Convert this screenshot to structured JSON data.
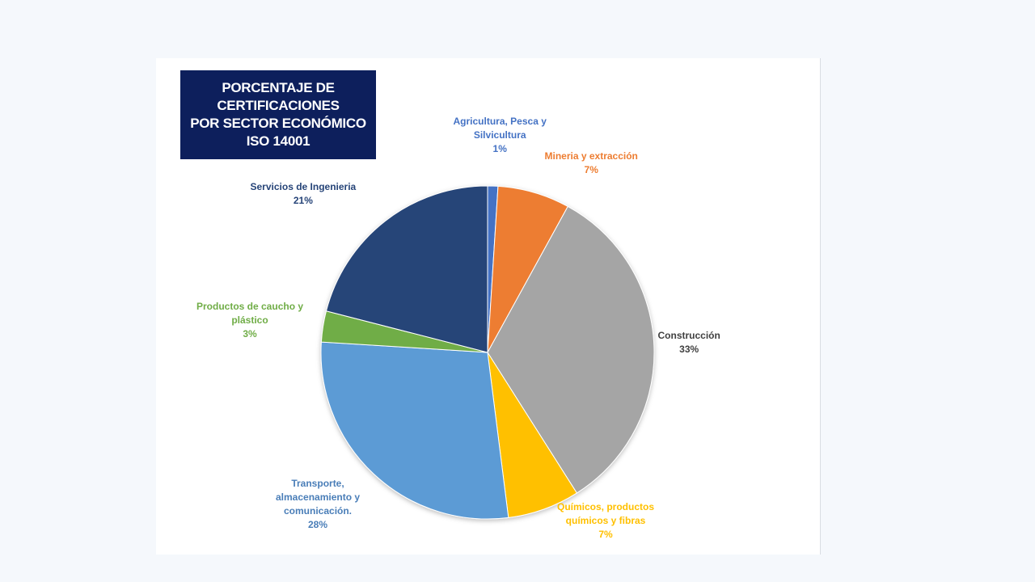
{
  "title_lines": [
    "PORCENTAJE DE",
    "CERTIFICACIONES",
    "POR SECTOR ECONÓMICO",
    "ISO 14001"
  ],
  "chart_data": {
    "type": "pie",
    "title": "PORCENTAJE DE CERTIFICACIONES POR SECTOR ECONÓMICO ISO 14001",
    "legend": "none",
    "slices": [
      {
        "name": "Agricultura, Pesca y Silvicultura",
        "name_lines": [
          "Agricultura, Pesca y",
          "Silvicultura"
        ],
        "value": 1,
        "label": "1%",
        "color": "#4472c4",
        "label_color": "#4472c4"
      },
      {
        "name": "Mineria y extracción",
        "name_lines": [
          "Mineria y extracción"
        ],
        "value": 7,
        "label": "7%",
        "color": "#ed7d31",
        "label_color": "#ed7d31"
      },
      {
        "name": "Construcción",
        "name_lines": [
          "Construcción"
        ],
        "value": 33,
        "label": "33%",
        "color": "#a5a5a5",
        "label_color": "#404040"
      },
      {
        "name": "Químicos, productos químicos y fibras",
        "name_lines": [
          "Químicos, productos",
          "químicos y fibras"
        ],
        "value": 7,
        "label": "7%",
        "color": "#ffc000",
        "label_color": "#ffc000"
      },
      {
        "name": "Transporte, almacenamiento y comunicación.",
        "name_lines": [
          "Transporte,",
          "almacenamiento y",
          "comunicación."
        ],
        "value": 28,
        "label": "28%",
        "color": "#5b9bd5",
        "label_color": "#4a7eb8"
      },
      {
        "name": "Productos de caucho y plástico",
        "name_lines": [
          "Productos de caucho y",
          "plástico"
        ],
        "value": 3,
        "label": "3%",
        "color": "#70ad47",
        "label_color": "#70ad47"
      },
      {
        "name": "Servicios de Ingenieria",
        "name_lines": [
          "Servicios de Ingenieria"
        ],
        "value": 21,
        "label": "21%",
        "color": "#264478",
        "label_color": "#264478"
      }
    ]
  }
}
